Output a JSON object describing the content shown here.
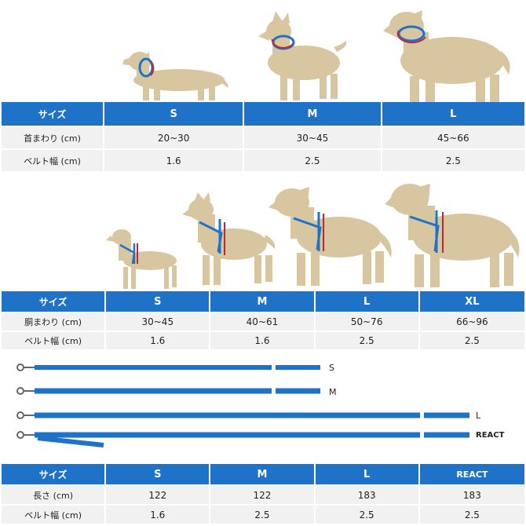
{
  "collar": {
    "header": [
      "サイズ",
      "S",
      "M",
      "L"
    ],
    "rows": [
      [
        "首まわり (cm)",
        "20~30",
        "30~45",
        "45~66"
      ],
      [
        "ベルト幅 (cm)",
        "1.6",
        "2.5",
        "2.5"
      ]
    ]
  },
  "harness": {
    "header": [
      "サイズ",
      "S",
      "M",
      "L",
      "XL"
    ],
    "rows": [
      [
        "胴まわり (cm)",
        "30~45",
        "40~61",
        "50~76",
        "66~96"
      ],
      [
        "ベルト幅 (cm)",
        "1.6",
        "1.6",
        "2.5",
        "2.5"
      ]
    ]
  },
  "leash": {
    "labels": [
      "S",
      "M",
      "L",
      "REACT"
    ],
    "header": [
      "サイズ",
      "S",
      "M",
      "L",
      "REACT"
    ],
    "rows": [
      [
        "長さ (cm)",
        "122",
        "122",
        "183",
        "183"
      ],
      [
        "ベルト幅 (cm)",
        "1.6",
        "2.5",
        "2.5",
        "2.5"
      ]
    ]
  },
  "colors": {
    "header_blue": "#1e72c8",
    "row_gray": "#f1f1f1",
    "dog_tan": "#d8c6a0",
    "strap_blue": "#1e72c8",
    "measure_red": "#c8262e"
  },
  "icons": [
    "dog-silhouette-icon",
    "collar-icon",
    "harness-icon",
    "leash-clip-icon",
    "measure-arrow-icon"
  ]
}
